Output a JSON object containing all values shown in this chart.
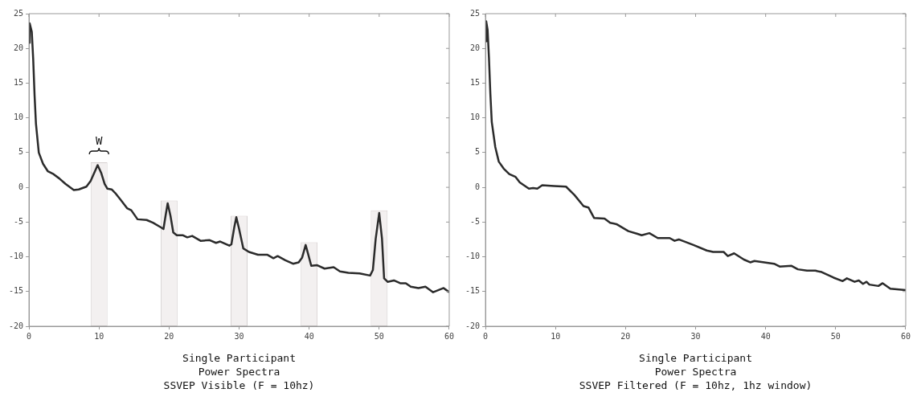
{
  "chart_data": [
    {
      "type": "line",
      "title": "Single Participant",
      "subtitle": "Power Spectra",
      "xlabel": "SSVEP Visible (F = 10hz)",
      "xlim": [
        0,
        60
      ],
      "ylim": [
        -20,
        25
      ],
      "xticks": [
        0,
        10,
        20,
        30,
        40,
        50,
        60
      ],
      "yticks": [
        -20,
        -15,
        -10,
        -5,
        0,
        5,
        10,
        15,
        20,
        25
      ],
      "marker": "none",
      "line_style": "solid",
      "annotations": [
        "W"
      ],
      "series": [
        {
          "type": "bar",
          "color": "#f3f0f0",
          "x": [
            10,
            20,
            30,
            40,
            50
          ],
          "base": [
            -20,
            -20,
            -20,
            -20,
            -20
          ],
          "values": [
            23.6,
            18.1,
            15.9,
            12.1,
            16.7
          ]
        },
        {
          "color": "#2b2b2b",
          "x": [
            0,
            0.1,
            0.4,
            0.6,
            0.8,
            1.0,
            1.4,
            2.0,
            2.7,
            3.5,
            4.3,
            5.2,
            6.4,
            7.1,
            8.2,
            8.8,
            9.5,
            9.8,
            10.3,
            10.8,
            11.2,
            11.8,
            12.3,
            13.1,
            14.0,
            14.6,
            15.5,
            16.8,
            17.7,
            18.9,
            19.2,
            19.5,
            19.8,
            20.2,
            20.6,
            21.1,
            22.0,
            22.6,
            23.3,
            24.5,
            25.8,
            26.7,
            27.3,
            28.6,
            28.9,
            29.3,
            29.6,
            30.0,
            30.6,
            31.4,
            32.7,
            34.0,
            34.9,
            35.5,
            36.6,
            37.7,
            38.5,
            39.0,
            39.5,
            39.8,
            40.3,
            41.1,
            42.2,
            43.5,
            44.4,
            45.6,
            47.2,
            48.7,
            49.1,
            49.5,
            50.0,
            50.4,
            50.7,
            51.2,
            52.1,
            53.0,
            53.8,
            54.5,
            55.6,
            56.6,
            57.7,
            59.2,
            60
          ],
          "values": [
            20.8,
            23.6,
            22.4,
            18.5,
            13.2,
            9.1,
            5.0,
            3.4,
            2.3,
            1.9,
            1.3,
            0.5,
            -0.4,
            -0.3,
            0.1,
            0.9,
            2.5,
            3.2,
            2.1,
            0.5,
            -0.2,
            -0.3,
            -0.8,
            -1.8,
            -3.0,
            -3.3,
            -4.6,
            -4.7,
            -5.1,
            -5.8,
            -6.0,
            -4.1,
            -2.3,
            -4.1,
            -6.5,
            -6.9,
            -6.9,
            -7.2,
            -7.0,
            -7.7,
            -7.6,
            -8.0,
            -7.8,
            -8.4,
            -8.2,
            -5.8,
            -4.3,
            -6.0,
            -8.8,
            -9.3,
            -9.7,
            -9.7,
            -10.2,
            -9.9,
            -10.5,
            -11.0,
            -10.8,
            -10.1,
            -8.3,
            -9.4,
            -11.3,
            -11.2,
            -11.7,
            -11.5,
            -12.1,
            -12.3,
            -12.4,
            -12.7,
            -11.9,
            -7.4,
            -3.7,
            -7.4,
            -13.1,
            -13.6,
            -13.4,
            -13.8,
            -13.8,
            -14.3,
            -14.5,
            -14.3,
            -15.1,
            -14.5,
            -15.1
          ]
        }
      ]
    },
    {
      "type": "line",
      "title": "Single Participant",
      "subtitle": "Power Spectra",
      "xlabel": "SSVEP Filtered (F = 10hz, 1hz window)",
      "xlim": [
        0,
        60
      ],
      "ylim": [
        -20,
        25
      ],
      "xticks": [
        0,
        10,
        20,
        30,
        40,
        50,
        60
      ],
      "yticks": [
        -20,
        -15,
        -10,
        -5,
        0,
        5,
        10,
        15,
        20,
        25
      ],
      "marker": "none",
      "line_style": "solid",
      "series": [
        {
          "color": "#2b2b2b",
          "x": [
            0,
            0.1,
            0.3,
            0.5,
            0.7,
            0.9,
            1.4,
            1.9,
            2.6,
            3.4,
            4.3,
            4.9,
            6.2,
            6.8,
            7.4,
            8.1,
            9.8,
            11.5,
            12.7,
            14.0,
            14.7,
            15.5,
            17.0,
            17.8,
            18.7,
            20.4,
            21.7,
            22.3,
            23.4,
            24.6,
            26.3,
            27.0,
            27.6,
            29.7,
            31.6,
            32.5,
            34.0,
            34.6,
            35.5,
            36.9,
            37.8,
            38.4,
            41.2,
            42.0,
            43.7,
            44.6,
            45.9,
            47.1,
            48.0,
            49.7,
            51.0,
            51.6,
            52.7,
            53.3,
            53.9,
            54.4,
            54.8,
            56.1,
            56.7,
            57.8,
            60
          ],
          "values": [
            21.0,
            23.9,
            22.7,
            18.6,
            13.4,
            9.4,
            5.8,
            3.7,
            2.7,
            1.9,
            1.5,
            0.7,
            -0.2,
            -0.1,
            -0.2,
            0.3,
            0.2,
            0.1,
            -1.1,
            -2.7,
            -2.9,
            -4.4,
            -4.5,
            -5.1,
            -5.3,
            -6.3,
            -6.7,
            -6.9,
            -6.6,
            -7.3,
            -7.3,
            -7.7,
            -7.5,
            -8.3,
            -9.1,
            -9.3,
            -9.3,
            -9.9,
            -9.5,
            -10.4,
            -10.8,
            -10.6,
            -11.0,
            -11.4,
            -11.3,
            -11.8,
            -12.0,
            -12.0,
            -12.2,
            -13.0,
            -13.5,
            -13.1,
            -13.6,
            -13.4,
            -13.9,
            -13.6,
            -14.0,
            -14.2,
            -13.8,
            -14.6,
            -14.8
          ]
        }
      ]
    }
  ]
}
